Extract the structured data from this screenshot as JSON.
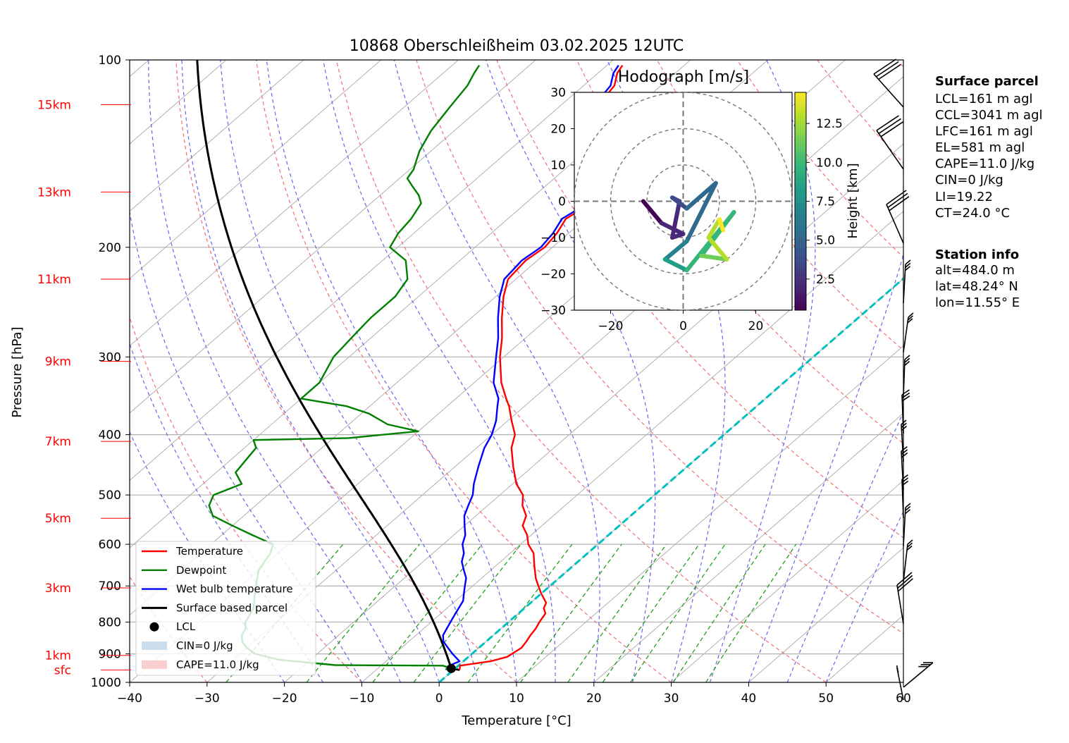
{
  "chart_data": {
    "type": "skew-t",
    "title": "10868 Oberschleißheim 03.02.2025 12UTC",
    "xlabel": "Temperature [°C]",
    "ylabel": "Pressure [hPa]",
    "xlim": [
      -40,
      60
    ],
    "ylim": [
      1000,
      100
    ],
    "pressure_ticks": [
      1000,
      900,
      800,
      700,
      600,
      500,
      400,
      300,
      200,
      100
    ],
    "pressure_tick_labels": [
      "1000",
      "900",
      "800",
      "700",
      "600",
      "500",
      "400",
      "300",
      "200",
      "100"
    ],
    "temperature_ticks": [
      -40,
      -30,
      -20,
      -10,
      0,
      10,
      20,
      30,
      40,
      50,
      60
    ],
    "temperature_tick_labels": [
      "−40",
      "−30",
      "−20",
      "−10",
      "0",
      "10",
      "20",
      "30",
      "40",
      "50",
      "60"
    ],
    "height_labels": [
      {
        "label": "sfc",
        "p": 955
      },
      {
        "label": "1km",
        "p": 905
      },
      {
        "label": "3km",
        "p": 705
      },
      {
        "label": "5km",
        "p": 545
      },
      {
        "label": "7km",
        "p": 410
      },
      {
        "label": "9km",
        "p": 305
      },
      {
        "label": "11km",
        "p": 225
      },
      {
        "label": "13km",
        "p": 163
      },
      {
        "label": "15km",
        "p": 118
      }
    ],
    "temperature": [
      [
        955,
        0.8
      ],
      [
        940,
        0.2
      ],
      [
        925,
        3.5
      ],
      [
        910,
        5.0
      ],
      [
        880,
        5.5
      ],
      [
        860,
        5.2
      ],
      [
        840,
        4.8
      ],
      [
        820,
        4.5
      ],
      [
        800,
        4.0
      ],
      [
        775,
        3.5
      ],
      [
        760,
        2.5
      ],
      [
        745,
        2.0
      ],
      [
        720,
        0.0
      ],
      [
        700,
        -1.5
      ],
      [
        680,
        -3.0
      ],
      [
        650,
        -5.0
      ],
      [
        620,
        -7.0
      ],
      [
        600,
        -9.0
      ],
      [
        580,
        -10.5
      ],
      [
        560,
        -12.5
      ],
      [
        540,
        -13.5
      ],
      [
        520,
        -15.5
      ],
      [
        500,
        -17.0
      ],
      [
        480,
        -19.5
      ],
      [
        450,
        -22.5
      ],
      [
        420,
        -25.5
      ],
      [
        400,
        -27.0
      ],
      [
        380,
        -29.5
      ],
      [
        360,
        -32.0
      ],
      [
        350,
        -33.5
      ],
      [
        330,
        -36.5
      ],
      [
        300,
        -40.5
      ],
      [
        280,
        -43.0
      ],
      [
        260,
        -46.0
      ],
      [
        240,
        -49.0
      ],
      [
        225,
        -51.0
      ],
      [
        210,
        -51.5
      ],
      [
        200,
        -51.0
      ],
      [
        190,
        -51.5
      ],
      [
        180,
        -52.5
      ],
      [
        175,
        -52.0
      ],
      [
        170,
        -52.5
      ],
      [
        165,
        -52.0
      ],
      [
        160,
        -54.0
      ],
      [
        155,
        -55.0
      ],
      [
        150,
        -57.0
      ],
      [
        145,
        -58.5
      ],
      [
        140,
        -60.0
      ],
      [
        135,
        -61.5
      ],
      [
        130,
        -63.0
      ],
      [
        125,
        -64.0
      ],
      [
        120,
        -64.5
      ],
      [
        115,
        -65.5
      ],
      [
        110,
        -66.0
      ],
      [
        105,
        -67.5
      ],
      [
        102,
        -68.0
      ]
    ],
    "dewpoint": [
      [
        955,
        -1.0
      ],
      [
        945,
        -1.2
      ],
      [
        940,
        -2.0
      ],
      [
        938,
        -16.0
      ],
      [
        920,
        -24.0
      ],
      [
        900,
        -28.0
      ],
      [
        880,
        -30.0
      ],
      [
        860,
        -31.5
      ],
      [
        840,
        -32.5
      ],
      [
        820,
        -33.0
      ],
      [
        800,
        -34.0
      ],
      [
        780,
        -34.5
      ],
      [
        760,
        -35.0
      ],
      [
        740,
        -36.0
      ],
      [
        720,
        -37.0
      ],
      [
        700,
        -38.0
      ],
      [
        680,
        -39.0
      ],
      [
        660,
        -40.0
      ],
      [
        640,
        -40.5
      ],
      [
        620,
        -41.0
      ],
      [
        600,
        -42.0
      ],
      [
        580,
        -46.0
      ],
      [
        560,
        -50.0
      ],
      [
        540,
        -54.0
      ],
      [
        520,
        -56.0
      ],
      [
        500,
        -57.0
      ],
      [
        480,
        -55.0
      ],
      [
        460,
        -57.5
      ],
      [
        440,
        -58.0
      ],
      [
        420,
        -58.5
      ],
      [
        408,
        -60.0
      ],
      [
        405,
        -48.0
      ],
      [
        400,
        -44.0
      ],
      [
        395,
        -40.0
      ],
      [
        385,
        -45.0
      ],
      [
        370,
        -49.0
      ],
      [
        360,
        -53.0
      ],
      [
        350,
        -60.0
      ],
      [
        330,
        -60.0
      ],
      [
        300,
        -62.0
      ],
      [
        280,
        -62.5
      ],
      [
        260,
        -63.0
      ],
      [
        240,
        -63.0
      ],
      [
        225,
        -64.0
      ],
      [
        210,
        -67.0
      ],
      [
        200,
        -71.0
      ],
      [
        190,
        -72.0
      ],
      [
        180,
        -72.5
      ],
      [
        170,
        -73.5
      ],
      [
        165,
        -75.0
      ],
      [
        160,
        -77.0
      ],
      [
        155,
        -79.0
      ],
      [
        150,
        -79.5
      ],
      [
        145,
        -80.5
      ],
      [
        140,
        -81.5
      ],
      [
        130,
        -83.0
      ],
      [
        120,
        -84.0
      ],
      [
        115,
        -84.5
      ],
      [
        110,
        -85.0
      ],
      [
        105,
        -86.0
      ],
      [
        102,
        -86.5
      ]
    ],
    "wetbulb": [
      [
        955,
        -0.5
      ],
      [
        940,
        -1.2
      ],
      [
        925,
        -0.5
      ],
      [
        900,
        -2.5
      ],
      [
        880,
        -4.0
      ],
      [
        860,
        -5.5
      ],
      [
        840,
        -6.5
      ],
      [
        820,
        -7.0
      ],
      [
        800,
        -7.5
      ],
      [
        780,
        -8.0
      ],
      [
        760,
        -8.5
      ],
      [
        740,
        -9.0
      ],
      [
        720,
        -10.0
      ],
      [
        700,
        -11.0
      ],
      [
        680,
        -12.0
      ],
      [
        660,
        -13.5
      ],
      [
        640,
        -15.0
      ],
      [
        620,
        -16.0
      ],
      [
        600,
        -17.5
      ],
      [
        580,
        -18.5
      ],
      [
        560,
        -20.0
      ],
      [
        540,
        -21.5
      ],
      [
        520,
        -22.5
      ],
      [
        500,
        -23.5
      ],
      [
        480,
        -25.0
      ],
      [
        450,
        -27.0
      ],
      [
        420,
        -29.0
      ],
      [
        400,
        -30.0
      ],
      [
        380,
        -31.5
      ],
      [
        360,
        -33.5
      ],
      [
        350,
        -34.5
      ],
      [
        330,
        -37.5
      ],
      [
        300,
        -41.0
      ],
      [
        280,
        -43.5
      ],
      [
        260,
        -46.5
      ],
      [
        240,
        -49.5
      ],
      [
        225,
        -51.5
      ],
      [
        210,
        -52.0
      ],
      [
        200,
        -51.5
      ],
      [
        190,
        -52.0
      ],
      [
        180,
        -53.0
      ],
      [
        175,
        -52.5
      ],
      [
        170,
        -53.0
      ],
      [
        165,
        -52.5
      ],
      [
        160,
        -54.5
      ],
      [
        155,
        -55.5
      ],
      [
        150,
        -57.5
      ],
      [
        145,
        -59.0
      ],
      [
        140,
        -60.5
      ],
      [
        135,
        -62.0
      ],
      [
        130,
        -63.5
      ],
      [
        125,
        -64.5
      ],
      [
        120,
        -65.0
      ],
      [
        115,
        -66.0
      ],
      [
        110,
        -66.5
      ],
      [
        105,
        -68.0
      ],
      [
        102,
        -68.5
      ]
    ],
    "legend": [
      {
        "label": "Temperature",
        "color": "#ff0000"
      },
      {
        "label": "Dewpoint",
        "color": "#008000"
      },
      {
        "label": "Wet bulb temperature",
        "color": "#0000ff"
      },
      {
        "label": "Surface based parcel",
        "color": "#000000"
      },
      {
        "label": "LCL",
        "color": "#000000"
      },
      {
        "label": "CIN=0 J/kg",
        "color": "#aecbe3"
      },
      {
        "label": "CAPE=11.0 J/kg",
        "color": "#f4b4b4"
      }
    ],
    "lcl": {
      "p": 950,
      "t": -0.5
    },
    "hodograph": {
      "title": "Hodograph [m/s]",
      "xlim": [
        -30,
        30
      ],
      "ylim": [
        -30,
        30
      ],
      "ticks": [
        -30,
        -20,
        -10,
        0,
        10,
        20,
        30
      ],
      "x_tick_labels": [
        "−20",
        "0",
        "20"
      ],
      "y_tick_labels": [
        "30",
        "20",
        "10",
        "0",
        "−10",
        "−20",
        "−30"
      ],
      "colorbar_label": "Height [km]",
      "colorbar_ticks": [
        "2.5",
        "5.0",
        "7.5",
        "10.0",
        "12.5"
      ],
      "colorbar_range": [
        0.5,
        14.5
      ]
    }
  },
  "info": {
    "surface_parcel_title": "Surface parcel",
    "surface_parcel": [
      "LCL=161 m agl",
      "CCL=3041 m agl",
      "LFC=161 m agl",
      "EL=581 m agl",
      "CAPE=11.0 J/kg",
      "CIN=0 J/kg",
      "LI=19.22",
      "CT=24.0 °C"
    ],
    "station_title": "Station info",
    "station": [
      "alt=484.0 m",
      "lat=48.24° N",
      "lon=11.55° E"
    ]
  }
}
